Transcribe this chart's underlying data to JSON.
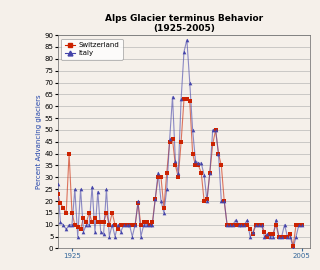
{
  "title": "Alps Glacier terminus Behavior",
  "subtitle": "(1925-2005)",
  "ylabel": "Percent Advancing glaciers",
  "xlim": [
    1920,
    2008
  ],
  "ylim": [
    0,
    90
  ],
  "yticks": [
    0,
    5,
    10,
    15,
    20,
    25,
    30,
    35,
    40,
    45,
    50,
    55,
    60,
    65,
    70,
    75,
    80,
    85,
    90
  ],
  "xticks": [
    1925,
    2005
  ],
  "switzerland_color": "#cc2200",
  "italy_color": "#4444aa",
  "bg_color": "#f5f0ea",
  "switzerland_data": [
    [
      1920,
      23
    ],
    [
      1921,
      19
    ],
    [
      1922,
      17
    ],
    [
      1923,
      15
    ],
    [
      1924,
      40
    ],
    [
      1925,
      15
    ],
    [
      1926,
      10
    ],
    [
      1927,
      9
    ],
    [
      1928,
      8
    ],
    [
      1929,
      13
    ],
    [
      1930,
      11
    ],
    [
      1931,
      15
    ],
    [
      1932,
      11
    ],
    [
      1933,
      13
    ],
    [
      1934,
      11
    ],
    [
      1935,
      11
    ],
    [
      1936,
      11
    ],
    [
      1937,
      15
    ],
    [
      1938,
      10
    ],
    [
      1939,
      15
    ],
    [
      1940,
      10
    ],
    [
      1941,
      8
    ],
    [
      1942,
      10
    ],
    [
      1943,
      10
    ],
    [
      1944,
      10
    ],
    [
      1945,
      10
    ],
    [
      1946,
      10
    ],
    [
      1947,
      10
    ],
    [
      1948,
      19
    ],
    [
      1949,
      10
    ],
    [
      1950,
      11
    ],
    [
      1951,
      11
    ],
    [
      1952,
      10
    ],
    [
      1953,
      11
    ],
    [
      1954,
      21
    ],
    [
      1955,
      30
    ],
    [
      1956,
      30
    ],
    [
      1957,
      17
    ],
    [
      1958,
      32
    ],
    [
      1959,
      45
    ],
    [
      1960,
      46
    ],
    [
      1961,
      35
    ],
    [
      1962,
      30
    ],
    [
      1963,
      45
    ],
    [
      1964,
      63
    ],
    [
      1965,
      63
    ],
    [
      1966,
      62
    ],
    [
      1967,
      40
    ],
    [
      1968,
      35
    ],
    [
      1969,
      35
    ],
    [
      1970,
      32
    ],
    [
      1971,
      20
    ],
    [
      1972,
      21
    ],
    [
      1973,
      32
    ],
    [
      1974,
      44
    ],
    [
      1975,
      50
    ],
    [
      1976,
      40
    ],
    [
      1977,
      35
    ],
    [
      1978,
      20
    ],
    [
      1979,
      10
    ],
    [
      1980,
      10
    ],
    [
      1981,
      10
    ],
    [
      1982,
      10
    ],
    [
      1983,
      10
    ],
    [
      1984,
      10
    ],
    [
      1985,
      10
    ],
    [
      1986,
      10
    ],
    [
      1987,
      8
    ],
    [
      1988,
      6
    ],
    [
      1989,
      10
    ],
    [
      1990,
      10
    ],
    [
      1991,
      10
    ],
    [
      1992,
      7
    ],
    [
      1993,
      5
    ],
    [
      1994,
      6
    ],
    [
      1995,
      6
    ],
    [
      1996,
      10
    ],
    [
      1997,
      5
    ],
    [
      1998,
      5
    ],
    [
      1999,
      5
    ],
    [
      2000,
      5
    ],
    [
      2001,
      6
    ],
    [
      2002,
      1
    ],
    [
      2003,
      10
    ],
    [
      2004,
      10
    ],
    [
      2005,
      10
    ]
  ],
  "italy_data": [
    [
      1920,
      27
    ],
    [
      1921,
      11
    ],
    [
      1922,
      10
    ],
    [
      1923,
      8
    ],
    [
      1924,
      10
    ],
    [
      1925,
      10
    ],
    [
      1926,
      25
    ],
    [
      1927,
      5
    ],
    [
      1928,
      25
    ],
    [
      1929,
      7
    ],
    [
      1930,
      10
    ],
    [
      1931,
      10
    ],
    [
      1932,
      26
    ],
    [
      1933,
      7
    ],
    [
      1934,
      24
    ],
    [
      1935,
      7
    ],
    [
      1936,
      6
    ],
    [
      1937,
      25
    ],
    [
      1938,
      5
    ],
    [
      1939,
      10
    ],
    [
      1940,
      5
    ],
    [
      1941,
      10
    ],
    [
      1942,
      7
    ],
    [
      1943,
      10
    ],
    [
      1944,
      10
    ],
    [
      1945,
      10
    ],
    [
      1946,
      5
    ],
    [
      1947,
      10
    ],
    [
      1948,
      20
    ],
    [
      1949,
      5
    ],
    [
      1950,
      10
    ],
    [
      1951,
      10
    ],
    [
      1952,
      10
    ],
    [
      1953,
      10
    ],
    [
      1954,
      21
    ],
    [
      1955,
      32
    ],
    [
      1956,
      20
    ],
    [
      1957,
      15
    ],
    [
      1958,
      25
    ],
    [
      1959,
      46
    ],
    [
      1960,
      64
    ],
    [
      1961,
      37
    ],
    [
      1962,
      32
    ],
    [
      1963,
      63
    ],
    [
      1964,
      83
    ],
    [
      1965,
      88
    ],
    [
      1966,
      70
    ],
    [
      1967,
      50
    ],
    [
      1968,
      37
    ],
    [
      1969,
      36
    ],
    [
      1970,
      36
    ],
    [
      1971,
      31
    ],
    [
      1972,
      20
    ],
    [
      1973,
      32
    ],
    [
      1974,
      50
    ],
    [
      1975,
      50
    ],
    [
      1976,
      40
    ],
    [
      1977,
      20
    ],
    [
      1978,
      20
    ],
    [
      1979,
      10
    ],
    [
      1980,
      10
    ],
    [
      1981,
      10
    ],
    [
      1982,
      12
    ],
    [
      1983,
      10
    ],
    [
      1984,
      10
    ],
    [
      1985,
      10
    ],
    [
      1986,
      12
    ],
    [
      1987,
      5
    ],
    [
      1988,
      7
    ],
    [
      1989,
      10
    ],
    [
      1990,
      10
    ],
    [
      1991,
      10
    ],
    [
      1992,
      5
    ],
    [
      1993,
      6
    ],
    [
      1994,
      5
    ],
    [
      1995,
      5
    ],
    [
      1996,
      12
    ],
    [
      1997,
      5
    ],
    [
      1998,
      5
    ],
    [
      1999,
      10
    ],
    [
      2000,
      5
    ],
    [
      2001,
      5
    ],
    [
      2002,
      0
    ],
    [
      2003,
      5
    ],
    [
      2004,
      10
    ],
    [
      2005,
      10
    ]
  ]
}
